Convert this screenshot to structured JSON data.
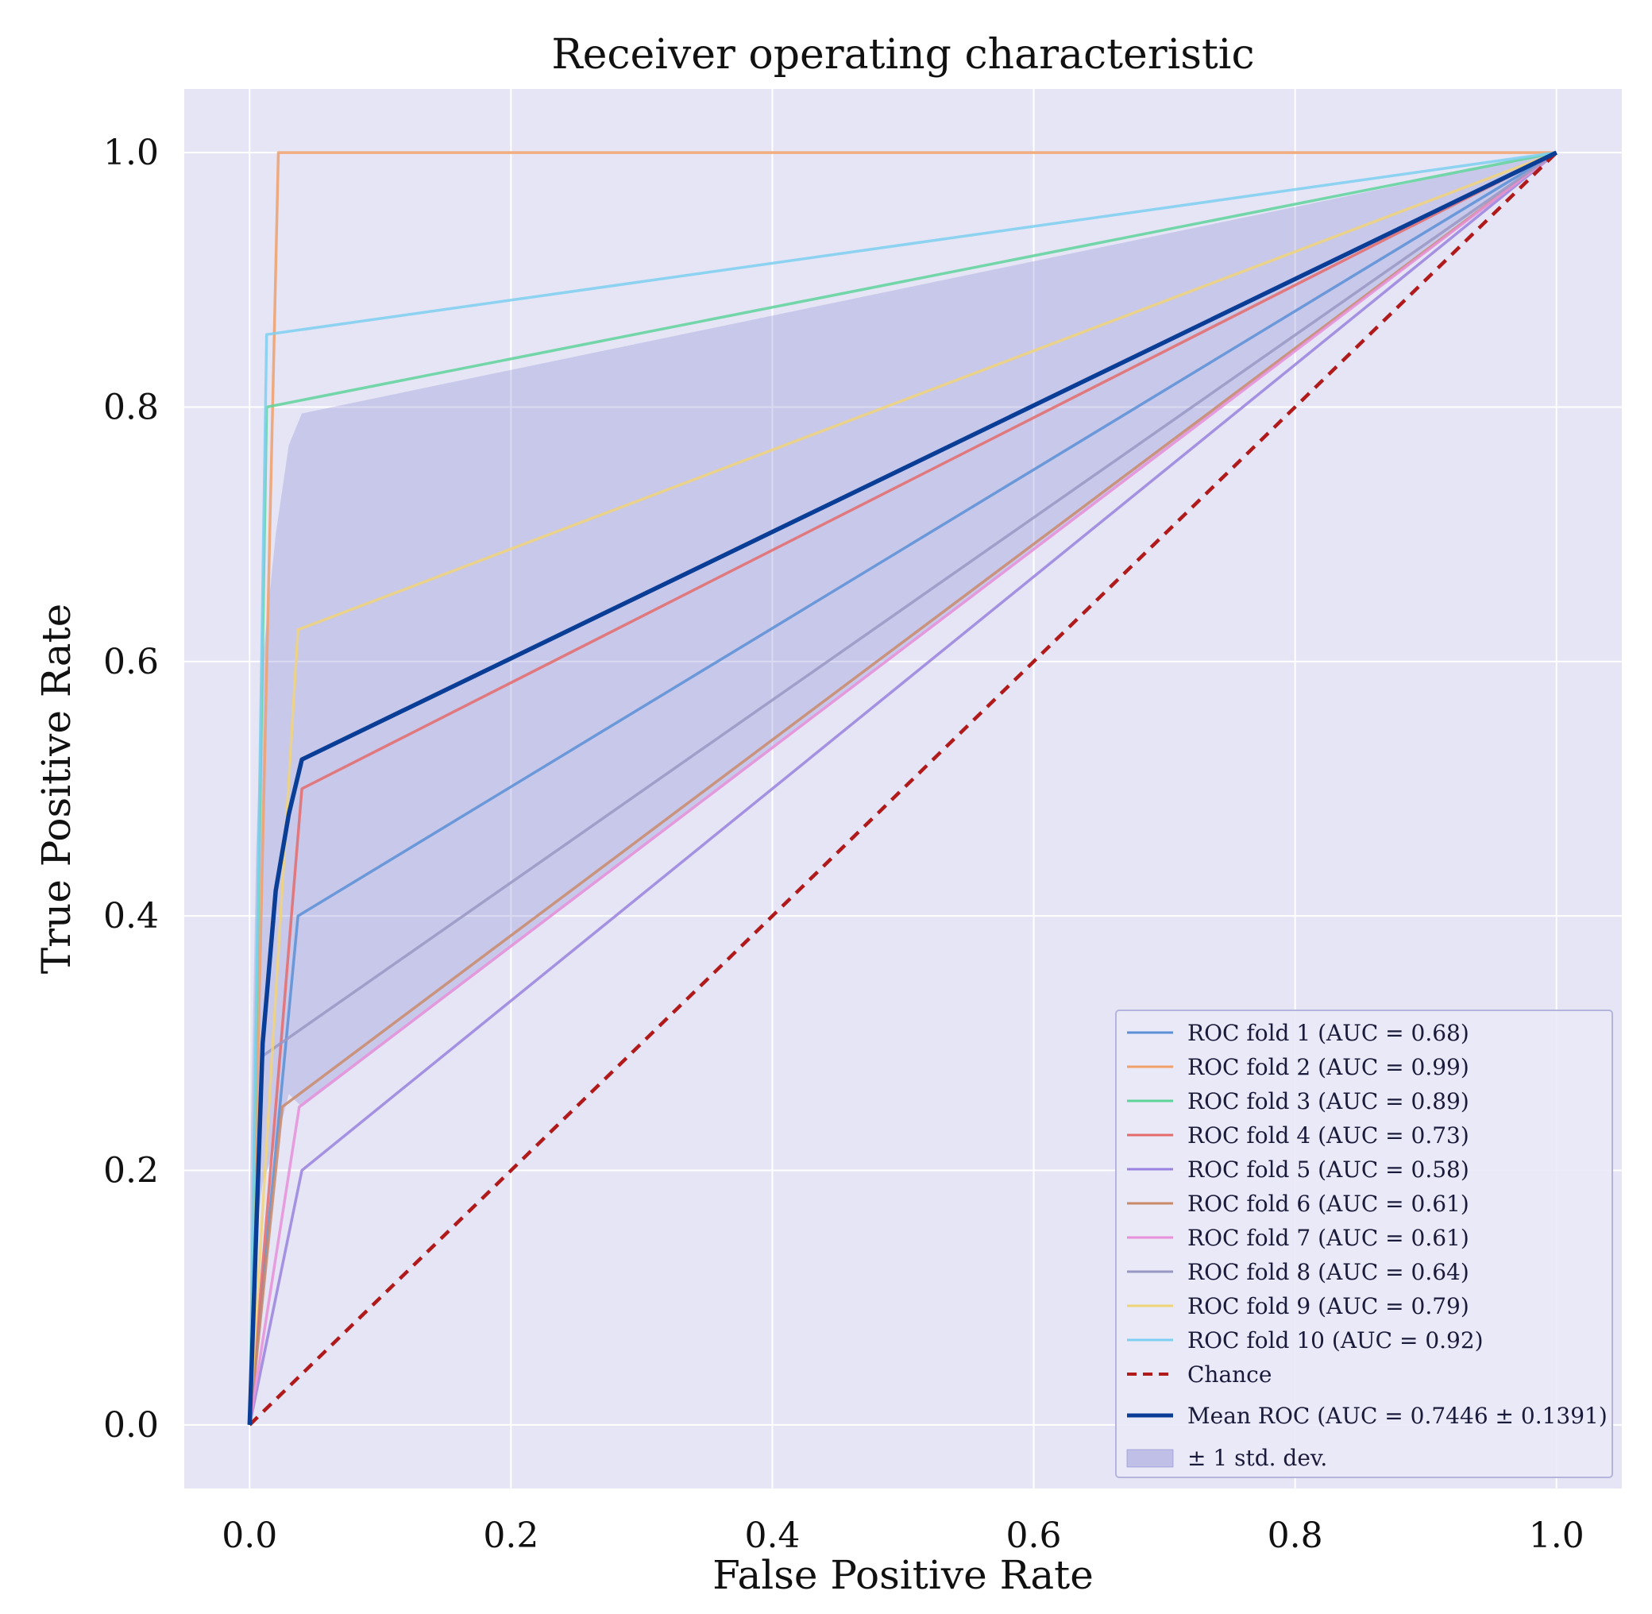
{
  "chart_data": {
    "type": "line",
    "title": "Receiver operating characteristic",
    "xlabel": "False Positive Rate",
    "ylabel": "True Positive Rate",
    "xlim": [
      -0.05,
      1.05
    ],
    "ylim": [
      -0.05,
      1.05
    ],
    "xticks": [
      "0.0",
      "0.2",
      "0.4",
      "0.6",
      "0.8",
      "1.0"
    ],
    "yticks": [
      "0.0",
      "0.2",
      "0.4",
      "0.6",
      "0.8",
      "1.0"
    ],
    "grid": true,
    "legend_position": "lower-right",
    "background_color": "#e5e5f6",
    "series": [
      {
        "name": "ROC fold 1 (AUC = 0.68)",
        "color": "#5b8fd6",
        "x": [
          0.0,
          0.037,
          1.0
        ],
        "y": [
          0.0,
          0.4,
          1.0
        ]
      },
      {
        "name": "ROC fold 2 (AUC = 0.99)",
        "color": "#f0a06a",
        "x": [
          0.0,
          0.022,
          1.0
        ],
        "y": [
          0.0,
          1.0,
          1.0
        ]
      },
      {
        "name": "ROC fold 3 (AUC = 0.89)",
        "color": "#5fd49a",
        "x": [
          0.0,
          0.013,
          1.0
        ],
        "y": [
          0.0,
          0.8,
          1.0
        ]
      },
      {
        "name": "ROC fold 4 (AUC = 0.73)",
        "color": "#e46b6b",
        "x": [
          0.0,
          0.04,
          1.0
        ],
        "y": [
          0.0,
          0.5,
          1.0
        ]
      },
      {
        "name": "ROC fold 5 (AUC = 0.58)",
        "color": "#9a82de",
        "x": [
          0.0,
          0.04,
          1.0
        ],
        "y": [
          0.0,
          0.2,
          1.0
        ]
      },
      {
        "name": "ROC fold 6 (AUC = 0.61)",
        "color": "#c98a6a",
        "x": [
          0.0,
          0.025,
          1.0
        ],
        "y": [
          0.0,
          0.25,
          1.0
        ]
      },
      {
        "name": "ROC fold 7 (AUC = 0.61)",
        "color": "#e890d8",
        "x": [
          0.0,
          0.038,
          1.0
        ],
        "y": [
          0.0,
          0.25,
          1.0
        ]
      },
      {
        "name": "ROC fold 8 (AUC = 0.64)",
        "color": "#9898c4",
        "x": [
          0.0,
          0.01,
          1.0
        ],
        "y": [
          0.0,
          0.29,
          1.0
        ]
      },
      {
        "name": "ROC fold 9 (AUC = 0.79)",
        "color": "#f0d47a",
        "x": [
          0.0,
          0.037,
          1.0
        ],
        "y": [
          0.0,
          0.625,
          1.0
        ]
      },
      {
        "name": "ROC fold 10 (AUC = 0.92)",
        "color": "#7ed0f0",
        "x": [
          0.0,
          0.013,
          1.0
        ],
        "y": [
          0.0,
          0.857,
          1.0
        ]
      }
    ],
    "chance": {
      "name": "Chance",
      "color": "#b01a1a",
      "x": [
        0,
        1
      ],
      "y": [
        0,
        1
      ]
    },
    "mean_roc": {
      "name": "Mean ROC (AUC = 0.7446 ± 0.1391)",
      "color": "#0a3e96",
      "x": [
        0.0,
        0.01,
        0.02,
        0.03,
        0.04,
        1.0
      ],
      "y": [
        0.0,
        0.3,
        0.42,
        0.48,
        0.523,
        1.0
      ]
    },
    "std_band": {
      "name": "± 1 std. dev.",
      "color": "#8c8cd2",
      "x": [
        0.0,
        0.005,
        0.01,
        0.02,
        0.03,
        0.04,
        1.0
      ],
      "upper": [
        0.17,
        0.45,
        0.6,
        0.7,
        0.77,
        0.795,
        1.0
      ],
      "lower": [
        0.0,
        0.15,
        0.19,
        0.22,
        0.26,
        0.25,
        1.0
      ]
    }
  }
}
